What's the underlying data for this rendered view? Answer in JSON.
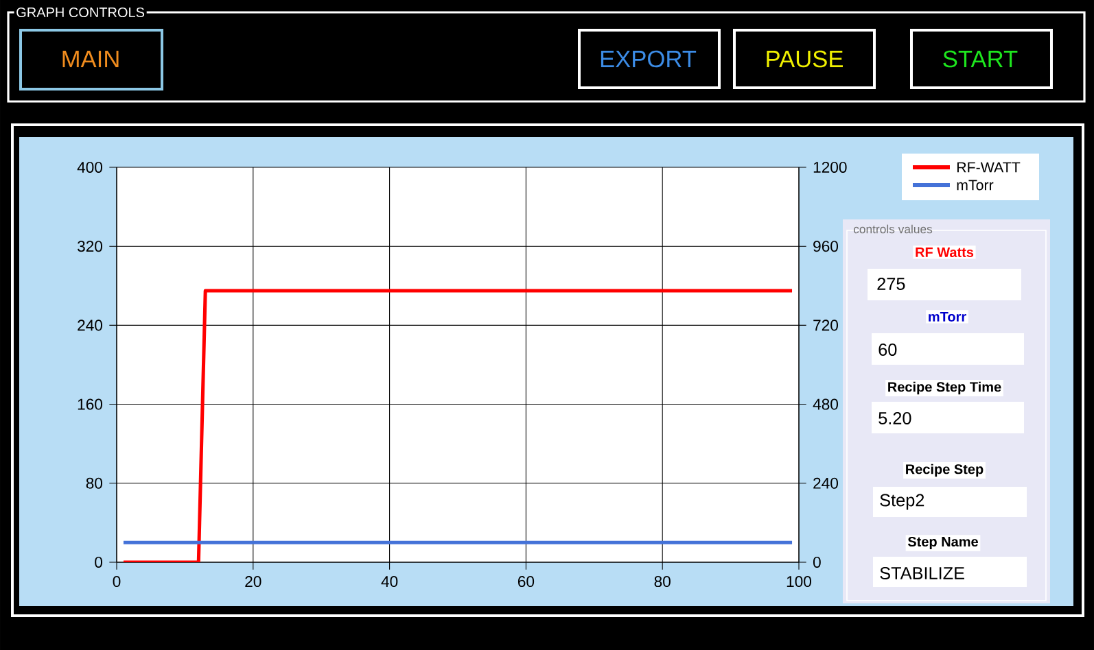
{
  "chart_data": {
    "type": "line",
    "xlim": [
      0,
      100
    ],
    "xticks": [
      0,
      20,
      40,
      60,
      80,
      100
    ],
    "ylim": [
      0,
      400
    ],
    "yticks": [
      0,
      80,
      160,
      240,
      320,
      400
    ],
    "y2lim": [
      0,
      1200
    ],
    "y2ticks": [
      0,
      240,
      480,
      720,
      960,
      1200
    ],
    "grid": true,
    "legend": "top right",
    "line_style": "solid",
    "marker": "none",
    "series": [
      {
        "name": "RF-WATT",
        "color": "#ff0000",
        "x": [
          1,
          12,
          13,
          99
        ],
        "values": [
          0,
          0,
          275,
          275
        ]
      },
      {
        "name": "mTorr",
        "color": "#4472d8",
        "axis": "y2",
        "x": [
          1,
          99
        ],
        "values": [
          60,
          60
        ]
      }
    ],
    "annotations": [
      "GRAPH CONTROLS",
      "MAIN",
      "EXPORT",
      "PAUSE",
      "START",
      "controls values",
      "RF Watts",
      "275",
      "mTorr",
      "60",
      "Recipe Step Time",
      "5.20",
      "Recipe Step",
      "Step2",
      "Step Name",
      "STABILIZE"
    ]
  }
}
